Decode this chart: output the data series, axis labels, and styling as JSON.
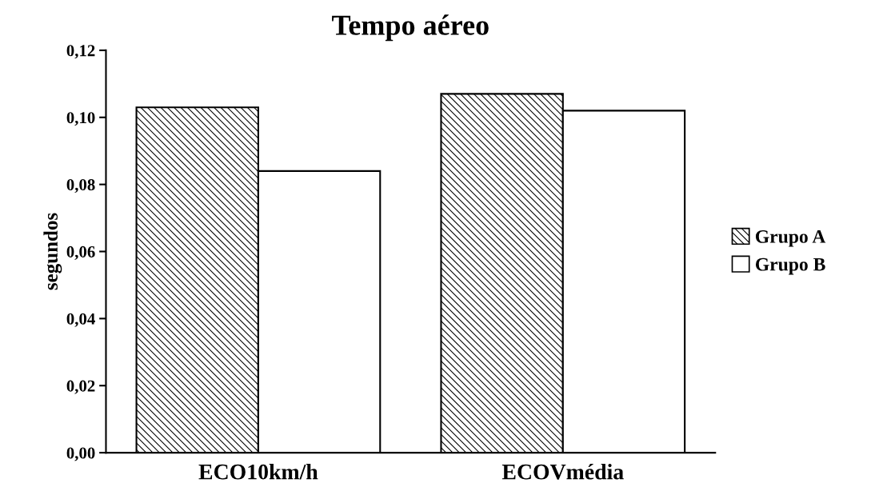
{
  "chart_data": {
    "type": "bar",
    "title": "Tempo aéreo",
    "ylabel": "segundos",
    "categories": [
      "ECO10km/h",
      "ECOVmédia"
    ],
    "series": [
      {
        "name": "Grupo A",
        "color": "#000000",
        "values": [
          0.103,
          0.107
        ]
      },
      {
        "name": "Grupo B",
        "color": "#ffffff",
        "values": [
          0.084,
          0.102
        ]
      }
    ],
    "ylim": [
      0,
      0.12
    ],
    "yticks": [
      {
        "value": 0,
        "label": "0,00"
      },
      {
        "value": 0.02,
        "label": "0,02"
      },
      {
        "value": 0.04,
        "label": "0,04"
      },
      {
        "value": 0.06,
        "label": "0,06"
      },
      {
        "value": 0.08,
        "label": "0,08"
      },
      {
        "value": 0.1,
        "label": "0,10"
      },
      {
        "value": 0.12,
        "label": "0,12"
      }
    ],
    "grid": false,
    "legend": "right"
  }
}
